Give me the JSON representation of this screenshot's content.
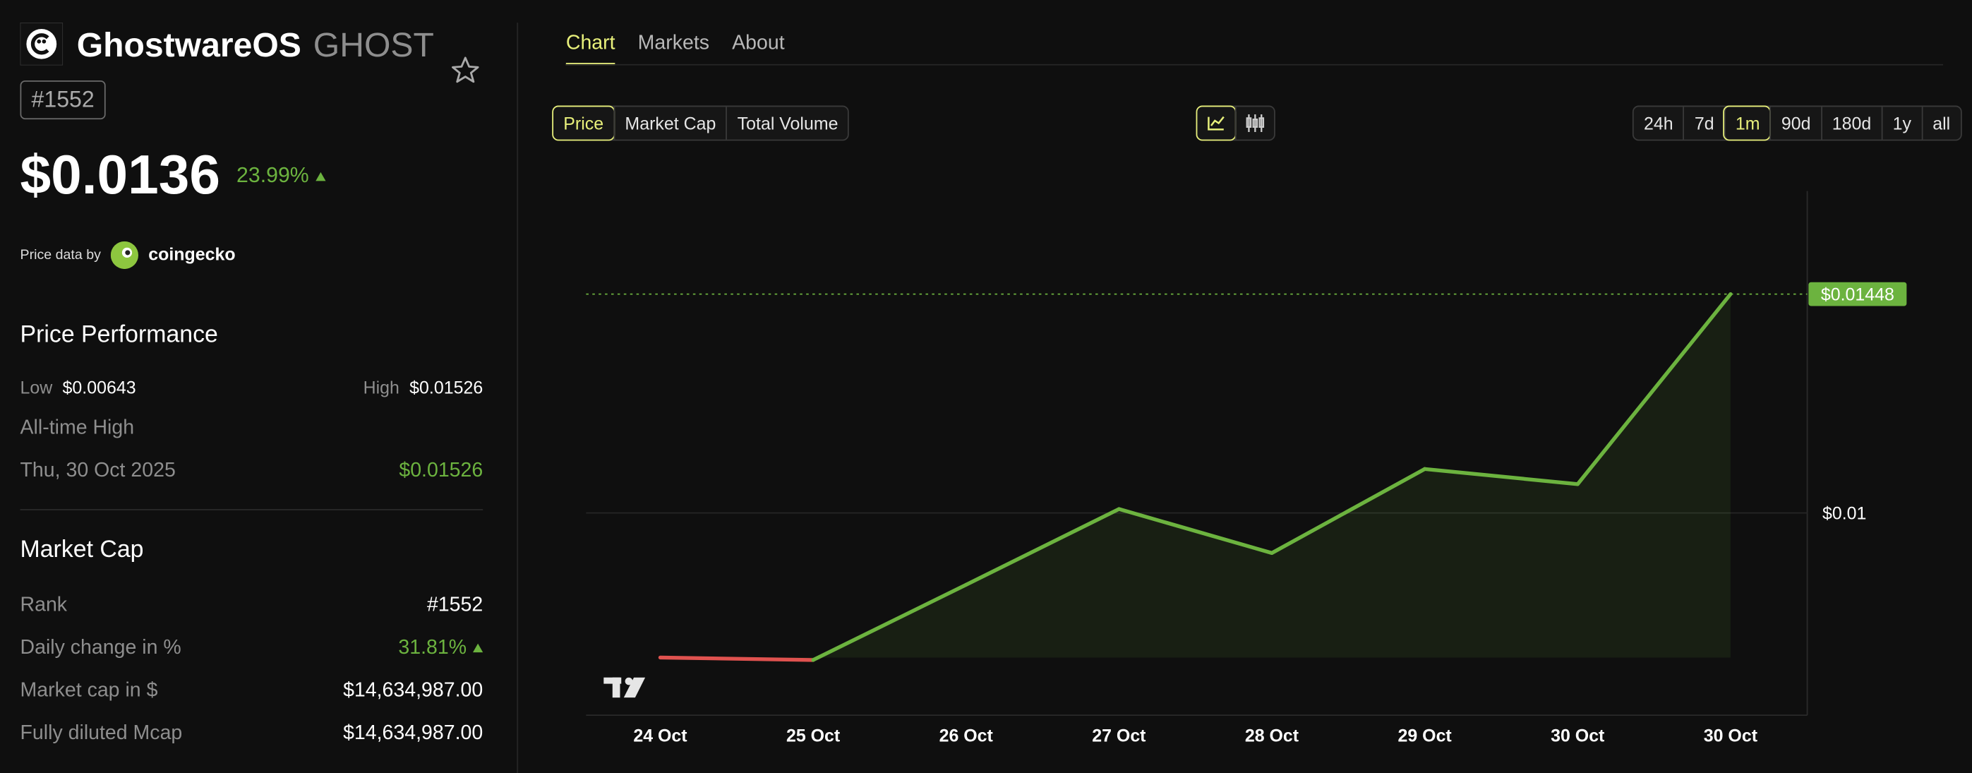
{
  "header": {
    "name": "GhostwareOS",
    "symbol": "GHOST",
    "rank": "#1552"
  },
  "price": {
    "value": "$0.0136",
    "change": "23.99%"
  },
  "source": {
    "prefix": "Price data by",
    "name": "coingecko"
  },
  "price_performance": {
    "title": "Price Performance",
    "low_label": "Low",
    "low": "$0.00643",
    "high_label": "High",
    "high": "$0.01526",
    "ath_label": "All-time High",
    "ath_date": "Thu, 30 Oct 2025",
    "ath_value": "$0.01526"
  },
  "market_cap": {
    "title": "Market Cap",
    "rows": [
      [
        "Rank",
        "#1552"
      ],
      [
        "Daily change in %",
        "31.81%"
      ],
      [
        "Market cap in $",
        "$14,634,987.00"
      ],
      [
        "Fully diluted Mcap",
        "$14,634,987.00"
      ]
    ]
  },
  "tabs": [
    "Chart",
    "Markets",
    "About"
  ],
  "active_tab": 0,
  "metric_buttons": [
    "Price",
    "Market Cap",
    "Total Volume"
  ],
  "active_metric": 0,
  "range_buttons": [
    "24h",
    "7d",
    "1m",
    "90d",
    "180d",
    "1y",
    "all"
  ],
  "active_range": 2,
  "chart_data": {
    "type": "line",
    "categories": [
      "24 Oct",
      "25 Oct",
      "26 Oct",
      "27 Oct",
      "28 Oct",
      "29 Oct",
      "30 Oct",
      "30 Oct"
    ],
    "values": [
      0.00704,
      0.00699,
      0.00853,
      0.01008,
      0.00918,
      0.0109,
      0.01059,
      0.01448
    ],
    "color": "#6cb33f",
    "down_color": "#e0524f",
    "last_value_label": "$0.01448",
    "ylim": [
      0.00586,
      0.01659
    ],
    "yticks": [
      {
        "value": 0.01,
        "label": "$0.01"
      }
    ],
    "grid": true
  }
}
